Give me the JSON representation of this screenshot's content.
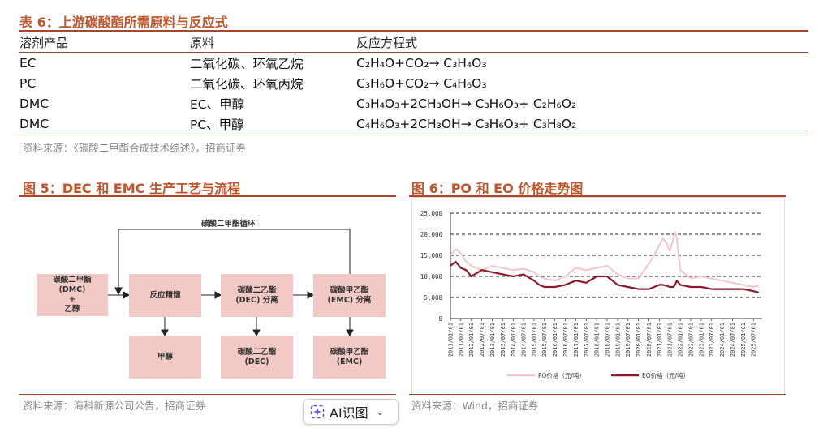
{
  "table6": {
    "title": "表 6：上游碳酸酯所需原料与反应式",
    "headers": [
      "溶剂产品",
      "原料",
      "反应方程式"
    ],
    "rows": [
      {
        "product": "EC",
        "materials": "二氧化碳、环氧乙烷",
        "equation": "C₂H₄O+CO₂→ C₃H₄O₃"
      },
      {
        "product": "PC",
        "materials": "二氧化碳、环氧丙烷",
        "equation": "C₃H₆O+CO₂→ C₄H₆O₃"
      },
      {
        "product": "DMC",
        "materials": "EC、甲醇",
        "equation": "C₃H₄O₃+2CH₃OH→ C₃H₆O₃+ C₂H₆O₂"
      },
      {
        "product": "DMC",
        "materials": "PC、甲醇",
        "equation": "C₄H₆O₃+2CH₃OH→ C₃H₆O₃+ C₃H₈O₂"
      }
    ],
    "source": "资料来源：《碳酸二甲酯合成技术综述》，招商证券"
  },
  "figure5": {
    "title": "图 5：DEC 和 EMC 生产工艺与流程",
    "loop_label": "碳酸二甲酯循环",
    "boxes": {
      "feed": "碳酸二甲酯\n(DMC)\n+\n乙醇",
      "distill": "反应精馏",
      "dec_sep": "碳酸二乙酯\n(DEC) 分离",
      "emc_sep": "碳酸甲乙酯\n(EMC) 分离",
      "methanol": "甲醇",
      "dec": "碳酸二乙酯\n(DEC)",
      "emc": "碳酸甲乙酯\n(EMC)"
    },
    "source": "资料来源：海科新源公司公告，招商证券"
  },
  "figure6": {
    "title": "图 6：PO 和 EO 价格走势图",
    "source": "资料来源：Wind，招商证券"
  },
  "chart_data": {
    "type": "line",
    "title": "",
    "xlabel": "",
    "ylabel": "",
    "ylim": [
      0,
      25000
    ],
    "yticks": [
      0,
      5000,
      10000,
      15000,
      20000,
      25000
    ],
    "ytick_labels": [
      "0",
      "5,000",
      "10,000",
      "15,000",
      "20,000",
      "25,000"
    ],
    "xtick_labels": [
      "2011/01/01",
      "2011/07/01",
      "2012/01/01",
      "2012/07/01",
      "2013/01/01",
      "2013/07/01",
      "2014/01/01",
      "2014/07/01",
      "2015/01/01",
      "2015/07/01",
      "2016/01/01",
      "2016/07/01",
      "2017/01/01",
      "2017/07/01",
      "2018/01/01",
      "2018/07/01",
      "2019/01/01",
      "2019/07/01",
      "2020/01/01",
      "2020/07/01",
      "2021/01/01",
      "2021/07/01",
      "2022/01/01",
      "2022/07/01",
      "2023/01/01",
      "2023/07/01",
      "2024/01/01",
      "2024/07/01",
      "2025/01/01",
      "2025/07/01"
    ],
    "grid": "horizontal dashed",
    "legend": "bottom",
    "x": [
      "2011/01/01",
      "2011/04/01",
      "2011/07/01",
      "2011/10/01",
      "2012/01/01",
      "2012/07/01",
      "2013/01/01",
      "2013/07/01",
      "2014/01/01",
      "2014/07/01",
      "2015/01/01",
      "2015/04/01",
      "2015/07/01",
      "2016/01/01",
      "2016/07/01",
      "2017/01/01",
      "2017/07/01",
      "2018/01/01",
      "2018/07/01",
      "2019/01/01",
      "2019/07/01",
      "2020/01/01",
      "2020/07/01",
      "2020/10/01",
      "2021/01/01",
      "2021/03/01",
      "2021/05/01",
      "2021/07/01",
      "2021/09/01",
      "2021/10/01",
      "2021/11/01",
      "2022/01/01",
      "2022/07/01",
      "2023/01/01",
      "2023/07/01",
      "2024/01/01",
      "2024/07/01",
      "2025/01/01",
      "2025/07/01",
      "2025/10/01"
    ],
    "series": [
      {
        "name": "PO价格（元/吨）",
        "color": "#f4c6cc",
        "values": [
          15000,
          16500,
          15500,
          13500,
          12500,
          11500,
          12500,
          12000,
          11500,
          11800,
          11000,
          10000,
          9500,
          9000,
          10000,
          12000,
          11500,
          12000,
          12500,
          10500,
          9500,
          9500,
          13000,
          15000,
          17500,
          19000,
          18000,
          16000,
          19000,
          20500,
          19000,
          11500,
          9500,
          10000,
          9500,
          9000,
          8500,
          8000,
          7500,
          7800
        ]
      },
      {
        "name": "EO价格（元/吨）",
        "color": "#8b1a2b",
        "values": [
          12500,
          13500,
          12000,
          11500,
          10000,
          11500,
          11000,
          10500,
          10000,
          10500,
          9000,
          8000,
          7500,
          7500,
          8000,
          9000,
          8500,
          10000,
          10000,
          8000,
          7500,
          7000,
          7000,
          7500,
          8000,
          8000,
          7800,
          7500,
          7500,
          8000,
          9000,
          8000,
          7500,
          7500,
          7000,
          7000,
          7000,
          7000,
          6500,
          6200
        ]
      }
    ]
  }
}
